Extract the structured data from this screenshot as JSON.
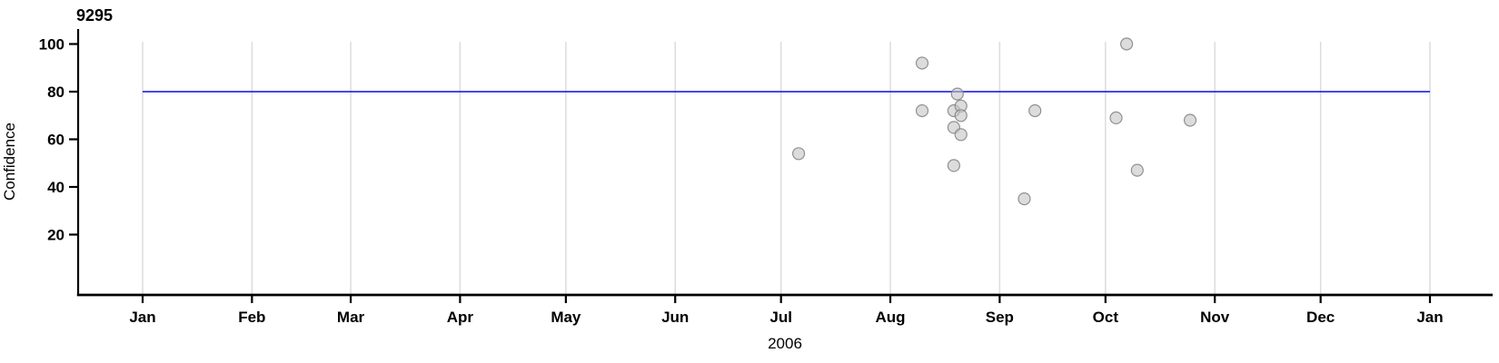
{
  "chart_data": {
    "type": "scatter",
    "title": "9295",
    "xlabel": "2006",
    "ylabel": "Confidence",
    "x_axis": {
      "tick_labels": [
        "Jan",
        "Feb",
        "Mar",
        "Apr",
        "May",
        "Jun",
        "Jul",
        "Aug",
        "Sep",
        "Oct",
        "Nov",
        "Dec",
        "Jan"
      ],
      "tick_day_offsets": [
        0,
        31,
        59,
        90,
        120,
        151,
        181,
        212,
        243,
        273,
        304,
        334,
        365
      ],
      "range_days": [
        0,
        365
      ],
      "grid": true,
      "year": "2006"
    },
    "y_axis": {
      "ticks": [
        20,
        40,
        60,
        80,
        100
      ],
      "range": [
        0,
        107
      ]
    },
    "threshold_line": {
      "value": 80,
      "color": "#0B0BE6"
    },
    "points": [
      {
        "date": "2006-07-06",
        "value": 54
      },
      {
        "date": "2006-08-10",
        "value": 92
      },
      {
        "date": "2006-08-10",
        "value": 72
      },
      {
        "date": "2006-08-19",
        "value": 72
      },
      {
        "date": "2006-08-19",
        "value": 65
      },
      {
        "date": "2006-08-19",
        "value": 49
      },
      {
        "date": "2006-08-20",
        "value": 79
      },
      {
        "date": "2006-08-21",
        "value": 74
      },
      {
        "date": "2006-08-21",
        "value": 70
      },
      {
        "date": "2006-08-21",
        "value": 62
      },
      {
        "date": "2006-09-08",
        "value": 35
      },
      {
        "date": "2006-09-11",
        "value": 72
      },
      {
        "date": "2006-10-04",
        "value": 69
      },
      {
        "date": "2006-10-07",
        "value": 100
      },
      {
        "date": "2006-10-10",
        "value": 47
      },
      {
        "date": "2006-10-25",
        "value": 68
      }
    ],
    "style": {
      "point_fill": "#C4C4C4",
      "point_stroke": "#808080",
      "grid_color": "#DCDCDC",
      "axis_color": "#000000",
      "background": "#FFFFFF"
    },
    "legend": "none"
  }
}
